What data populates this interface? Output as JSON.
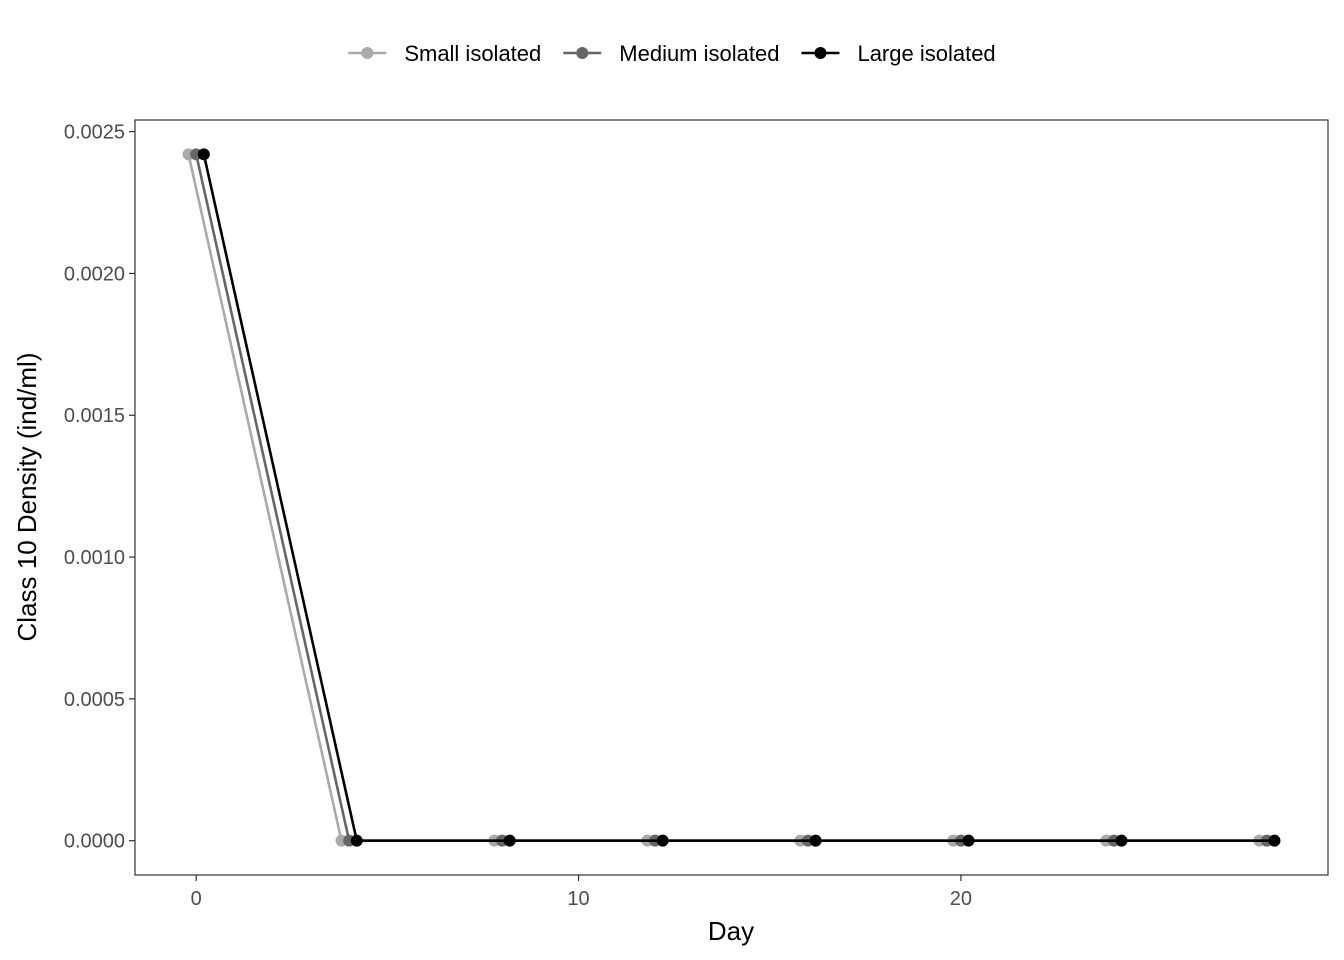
{
  "chart_data": {
    "type": "line",
    "xlabel": "Day",
    "ylabel": "Class 10 Density (ind/ml)",
    "xlim": [
      -1.6,
      29.6
    ],
    "ylim": [
      -0.000121,
      0.002541
    ],
    "x_ticks": [
      0,
      10,
      20
    ],
    "x_tick_labels": [
      "0",
      "10",
      "20"
    ],
    "y_ticks": [
      0,
      0.0005,
      0.001,
      0.0015,
      0.002,
      0.0025
    ],
    "y_tick_labels": [
      "0.0000",
      "0.0005",
      "0.0010",
      "0.0015",
      "0.0020",
      "0.0025"
    ],
    "legend_position": "top",
    "grid": false,
    "dodge": 0.2,
    "x": [
      0,
      4,
      8,
      12,
      16,
      20,
      24,
      28
    ],
    "series": [
      {
        "name": "Small isolated",
        "color": "#aaaaaa",
        "values": [
          0.00242,
          0,
          0,
          0,
          0,
          0,
          0,
          0
        ]
      },
      {
        "name": "Medium isolated",
        "color": "#666666",
        "values": [
          0.00242,
          0,
          0,
          0,
          0,
          0,
          0,
          0
        ]
      },
      {
        "name": "Large isolated",
        "color": "#000000",
        "values": [
          0.00242,
          0,
          0,
          0,
          0,
          0,
          0,
          0
        ]
      }
    ]
  }
}
